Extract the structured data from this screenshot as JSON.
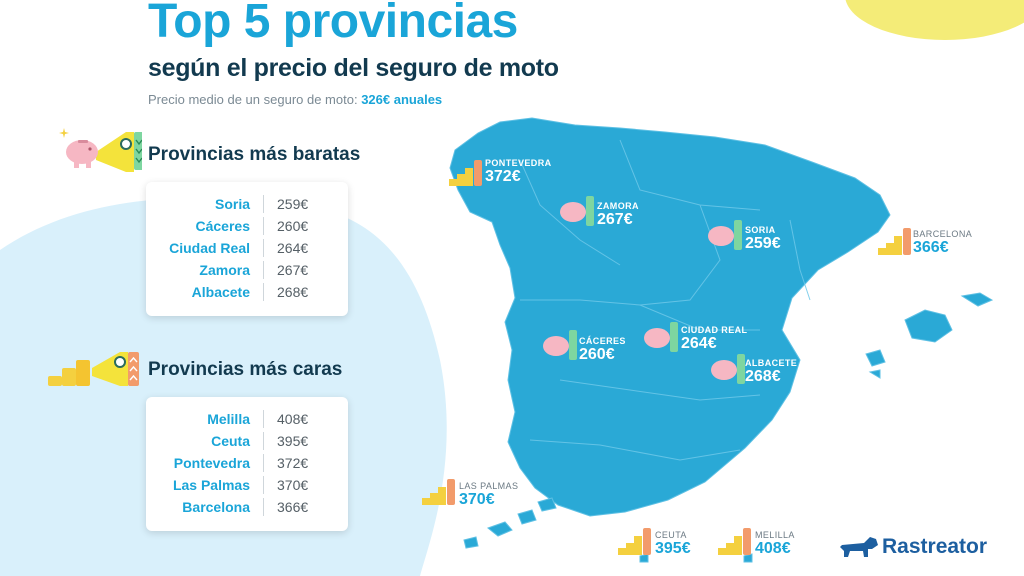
{
  "header": {
    "title": "Top 5 provincias",
    "subtitle": "según el precio del seguro de moto",
    "avg_prefix": "Precio medio de un seguro de moto:",
    "avg_value": "326€ anuales"
  },
  "cheap": {
    "title": "Provincias más baratas",
    "rows": [
      {
        "province": "Soria",
        "price": "259€"
      },
      {
        "province": "Cáceres",
        "price": "260€"
      },
      {
        "province": "Ciudad Real",
        "price": "264€"
      },
      {
        "province": "Zamora",
        "price": "267€"
      },
      {
        "province": "Albacete",
        "price": "268€"
      }
    ]
  },
  "expensive": {
    "title": "Provincias más caras",
    "rows": [
      {
        "province": "Melilla",
        "price": "408€"
      },
      {
        "province": "Ceuta",
        "price": "395€"
      },
      {
        "province": "Pontevedra",
        "price": "372€"
      },
      {
        "province": "Las Palmas",
        "price": "370€"
      },
      {
        "province": "Barcelona",
        "price": "366€"
      }
    ]
  },
  "map": {
    "pontevedra": {
      "name": "PONTEVEDRA",
      "value": "372€"
    },
    "zamora": {
      "name": "ZAMORA",
      "value": "267€"
    },
    "soria": {
      "name": "SORIA",
      "value": "259€"
    },
    "barcelona": {
      "name": "BARCELONA",
      "value": "366€"
    },
    "caceres": {
      "name": "CÁCERES",
      "value": "260€"
    },
    "ciudad_real": {
      "name": "CIUDAD REAL",
      "value": "264€"
    },
    "albacete": {
      "name": "ALBACETE",
      "value": "268€"
    },
    "las_palmas": {
      "name": "LAS PALMAS",
      "value": "370€"
    },
    "ceuta": {
      "name": "CEUTA",
      "value": "395€"
    },
    "melilla": {
      "name": "MELILLA",
      "value": "408€"
    }
  },
  "brand": {
    "logo": "Rastreator"
  },
  "colors": {
    "accent": "#1aa5d8",
    "map": "#2aa9d6",
    "dark": "#123a4f",
    "background_blob": "#d9f0fb",
    "yellow": "#f4ec78",
    "piggy": "#f6b7c3",
    "coins": "#f4d03f",
    "green_up": "#7ed6a0",
    "orange_up": "#f29b6b"
  },
  "icons": [
    "piggy-bank-icon",
    "coins-stack-icon",
    "megaphone-icon",
    "dog-logo-icon"
  ]
}
